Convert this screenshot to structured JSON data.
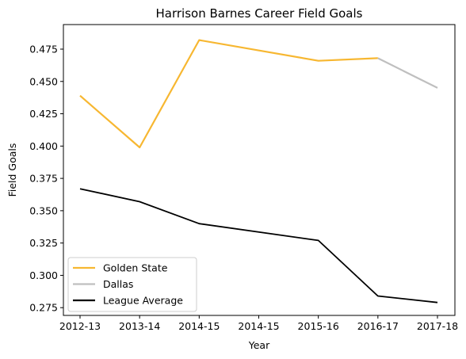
{
  "chart_data": {
    "type": "line",
    "title": "Harrison Barnes Career Field Goals",
    "xlabel": "Year",
    "ylabel": "Field Goals",
    "categories": [
      "2012-13",
      "2013-14",
      "2014-15",
      "2014-15",
      "2015-16",
      "2016-17",
      "2017-18"
    ],
    "ylim": [
      0.269,
      0.494
    ],
    "yticks": [
      0.275,
      0.3,
      0.325,
      0.35,
      0.375,
      0.4,
      0.425,
      0.45,
      0.475
    ],
    "grid": false,
    "legend_position": "lower-left",
    "series": [
      {
        "name": "Golden State",
        "color": "#F7B731",
        "points": [
          {
            "x": "2012-13",
            "y": 0.439
          },
          {
            "x": "2013-14",
            "y": 0.399
          },
          {
            "x": "2014-15",
            "y": 0.482
          },
          {
            "x": "2015-16",
            "y": 0.466
          },
          {
            "x": "2016-17",
            "y": 0.468
          }
        ]
      },
      {
        "name": "Dallas",
        "color": "#BFBFBF",
        "points": [
          {
            "x": "2016-17",
            "y": 0.468
          },
          {
            "x": "2017-18",
            "y": 0.445
          }
        ]
      },
      {
        "name": "League Average",
        "color": "#000000",
        "points": [
          {
            "x": "2012-13",
            "y": 0.367
          },
          {
            "x": "2013-14",
            "y": 0.357
          },
          {
            "x": "2014-15",
            "y": 0.34
          },
          {
            "x": "2015-16",
            "y": 0.327
          },
          {
            "x": "2016-17",
            "y": 0.284
          },
          {
            "x": "2017-18",
            "y": 0.279
          }
        ]
      }
    ]
  }
}
